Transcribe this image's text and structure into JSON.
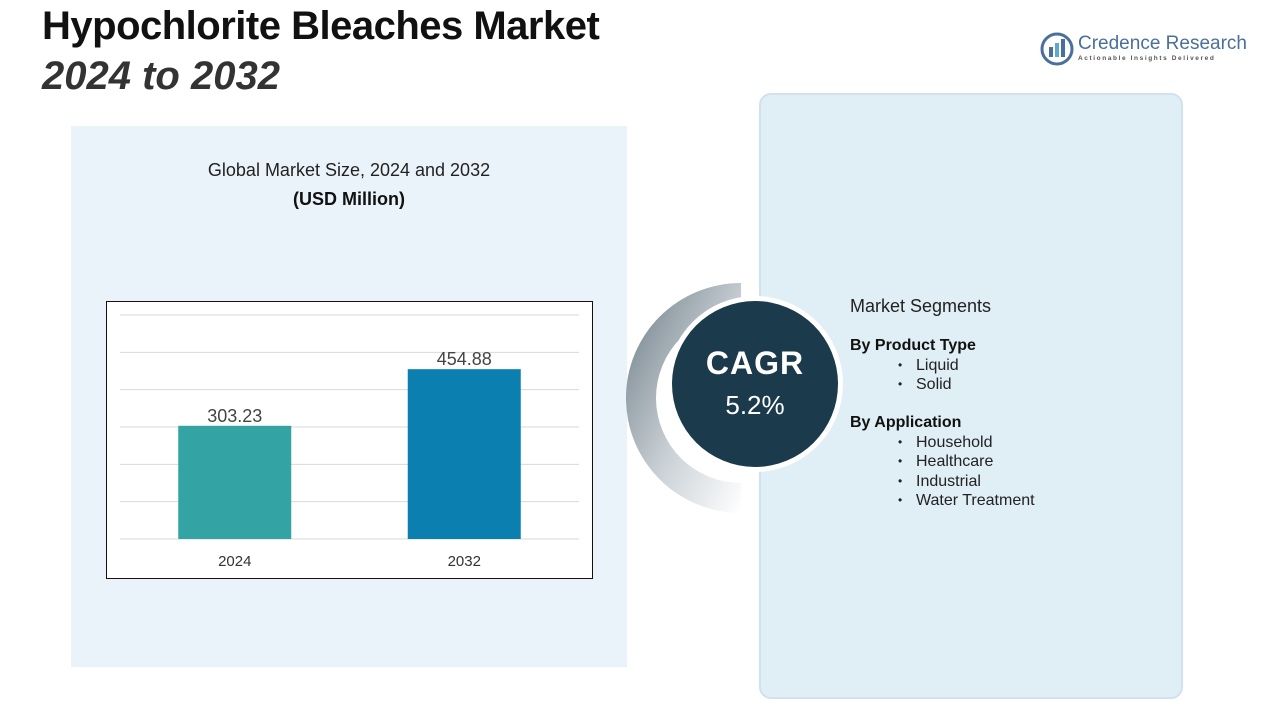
{
  "header": {
    "title_line1": "Hypochlorite Bleaches Market",
    "title_line2": "2024 to 2032"
  },
  "logo": {
    "name": "Credence Research",
    "tagline": "Actionable Insights Delivered",
    "icon": "bar-chart-logo-icon"
  },
  "chart_data": {
    "type": "bar",
    "title": "Global Market Size, 2024 and 2032",
    "subtitle": "(USD Million)",
    "categories": [
      "2024",
      "2032"
    ],
    "values": [
      303.23,
      454.88
    ],
    "value_labels": [
      "303.23",
      "454.88"
    ],
    "colors": [
      "#33a3a3",
      "#0a7fb0"
    ],
    "ylim": [
      0,
      600
    ],
    "grid": true,
    "xlabel": "",
    "ylabel": ""
  },
  "cagr": {
    "label": "CAGR",
    "value": "5.2%"
  },
  "segments": {
    "title": "Market Segments",
    "groups": [
      {
        "title": "By Product Type",
        "items": [
          "Liquid",
          "Solid"
        ]
      },
      {
        "title": "By Application",
        "items": [
          "Household",
          "Healthcare",
          "Industrial",
          "Water Treatment"
        ]
      }
    ]
  },
  "colors": {
    "panel_left": "#eaf3f9",
    "panel_right": "#e0eef6",
    "cagr_circle": "#1b3a4b",
    "logo_blue": "#4a6f9c"
  }
}
